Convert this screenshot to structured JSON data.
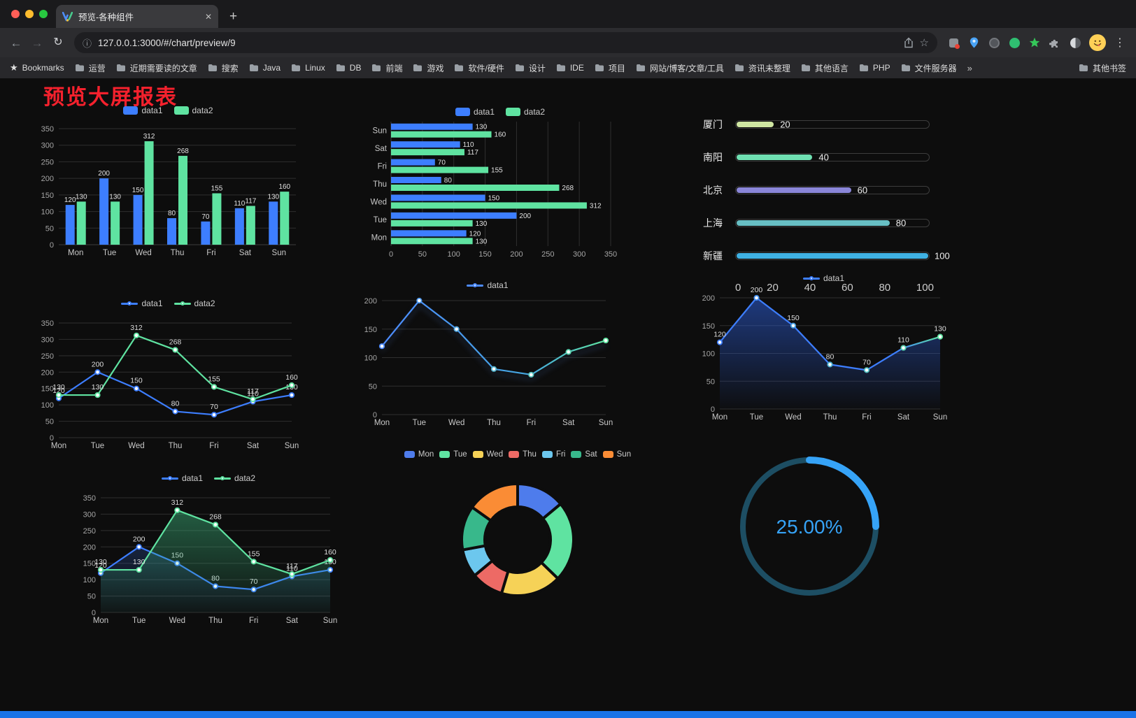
{
  "browser": {
    "tab_title": "预览-各种组件",
    "url": "127.0.0.1:3000/#/chart/preview/9",
    "traffic_lights": [
      "#ff5f57",
      "#febc2e",
      "#28c840"
    ],
    "icons": {
      "back": "←",
      "forward": "→",
      "reload": "↻",
      "info": "ⓘ",
      "star": "☆",
      "menu": "⋮",
      "new_tab": "+",
      "close_tab": "✕",
      "overflow": "»",
      "bookmarks_star": "★"
    },
    "bookmarks_label": "Bookmarks",
    "bookmarks": [
      "运营",
      "近期需要读的文章",
      "搜索",
      "Java",
      "Linux",
      "DB",
      "前端",
      "游戏",
      "软件/硬件",
      "设计",
      "IDE",
      "项目",
      "网站/博客/文章/工具",
      "资讯未整理",
      "其他语言",
      "PHP",
      "文件服务器"
    ],
    "other_bookmarks": "其他书签"
  },
  "page": {
    "title": "预览大屏报表",
    "title_color": "#f5212d",
    "background": "#0d0d0d",
    "footer_color": "#1a73e8"
  },
  "chart_data": [
    {
      "id": "bar-grouped",
      "type": "bar",
      "categories": [
        "Mon",
        "Tue",
        "Wed",
        "Thu",
        "Fri",
        "Sat",
        "Sun"
      ],
      "series": [
        {
          "name": "data1",
          "color": "#3D7EFF",
          "values": [
            120,
            200,
            150,
            80,
            70,
            110,
            130
          ]
        },
        {
          "name": "data2",
          "color": "#5FE3A1",
          "values": [
            130,
            130,
            312,
            268,
            155,
            117,
            160
          ]
        }
      ],
      "ylim": [
        0,
        350
      ],
      "ytick": 50,
      "show_labels": true
    },
    {
      "id": "bar-horizontal",
      "type": "hbar",
      "categories": [
        "Mon",
        "Tue",
        "Wed",
        "Thu",
        "Fri",
        "Sat",
        "Sun"
      ],
      "series": [
        {
          "name": "data1",
          "color": "#3D7EFF",
          "values": [
            120,
            200,
            150,
            80,
            70,
            110,
            130
          ]
        },
        {
          "name": "data2",
          "color": "#5FE3A1",
          "values": [
            130,
            130,
            312,
            268,
            155,
            117,
            160
          ]
        }
      ],
      "xlim": [
        0,
        350
      ],
      "xtick": 50,
      "show_labels": true
    },
    {
      "id": "progress",
      "type": "progress",
      "max": 100,
      "items": [
        {
          "label": "厦门",
          "value": 20,
          "color": "#cfe6a2"
        },
        {
          "label": "南阳",
          "value": 40,
          "color": "#6fe0b2"
        },
        {
          "label": "北京",
          "value": 60,
          "color": "#8a86d8"
        },
        {
          "label": "上海",
          "value": 80,
          "color": "#67bfc4"
        },
        {
          "label": "新疆",
          "value": 100,
          "color": "#3fb1e3"
        }
      ],
      "axis_ticks": [
        0,
        20,
        40,
        60,
        80,
        100
      ]
    },
    {
      "id": "line-two",
      "type": "line",
      "categories": [
        "Mon",
        "Tue",
        "Wed",
        "Thu",
        "Fri",
        "Sat",
        "Sun"
      ],
      "series": [
        {
          "name": "data1",
          "color": "#3D7EFF",
          "values": [
            120,
            200,
            150,
            80,
            70,
            110,
            130
          ]
        },
        {
          "name": "data2",
          "color": "#5FE3A1",
          "values": [
            130,
            130,
            312,
            268,
            155,
            117,
            160
          ]
        }
      ],
      "ylim": [
        0,
        350
      ],
      "ytick": 50,
      "show_labels": true
    },
    {
      "id": "line-gradient",
      "type": "line",
      "categories": [
        "Mon",
        "Tue",
        "Wed",
        "Thu",
        "Fri",
        "Sat",
        "Sun"
      ],
      "series": [
        {
          "name": "data1",
          "color": "#4d8bff",
          "shadow": true,
          "gradient": [
            [
              "0%",
              "#4d8bff"
            ],
            [
              "65%",
              "#45a7e0"
            ],
            [
              "100%",
              "#5FE3A1"
            ]
          ],
          "values": [
            120,
            200,
            150,
            80,
            70,
            110,
            130
          ]
        }
      ],
      "ylim": [
        0,
        200
      ],
      "ytick": 50,
      "show_labels": false
    },
    {
      "id": "line-area",
      "type": "line",
      "categories": [
        "Mon",
        "Tue",
        "Wed",
        "Thu",
        "Fri",
        "Sat",
        "Sun"
      ],
      "series": [
        {
          "name": "data1",
          "color": "#3D7EFF",
          "gradient": [
            [
              "0%",
              "#3D7EFF"
            ],
            [
              "80%",
              "#3D7EFF"
            ],
            [
              "100%",
              "#5FE3A1"
            ]
          ],
          "area": [
            "rgba(45,95,220,0.55)",
            "rgba(45,95,220,0.02)"
          ],
          "values": [
            120,
            200,
            150,
            80,
            70,
            110,
            130
          ]
        }
      ],
      "ylim": [
        0,
        200
      ],
      "ytick": 50,
      "show_labels": true
    },
    {
      "id": "line-area-two",
      "type": "line",
      "categories": [
        "Mon",
        "Tue",
        "Wed",
        "Thu",
        "Fri",
        "Sat",
        "Sun"
      ],
      "series": [
        {
          "name": "data1",
          "color": "#3D7EFF",
          "area": [
            "rgba(61,126,255,0.20)",
            "rgba(61,126,255,0.02)"
          ],
          "values": [
            120,
            200,
            150,
            80,
            70,
            110,
            130
          ]
        },
        {
          "name": "data2",
          "color": "#5FE3A1",
          "area": [
            "rgba(63,190,131,0.45)",
            "rgba(63,190,131,0.04)"
          ],
          "values": [
            130,
            130,
            312,
            268,
            155,
            117,
            160
          ]
        }
      ],
      "ylim": [
        0,
        350
      ],
      "ytick": 50,
      "show_labels": true
    },
    {
      "id": "donut",
      "type": "donut",
      "categories": [
        "Mon",
        "Tue",
        "Wed",
        "Thu",
        "Fri",
        "Sat",
        "Sun"
      ],
      "values": [
        120,
        200,
        150,
        80,
        70,
        110,
        130
      ],
      "colors": [
        "#4E7CEC",
        "#5FE3A1",
        "#F6D257",
        "#ED6A65",
        "#6CC7EE",
        "#38B88B",
        "#FA8C35"
      ]
    },
    {
      "id": "gauge",
      "type": "gauge",
      "value": 25,
      "label": "25.00%",
      "color": "#36A3F7",
      "track_color": "#1D4E63"
    }
  ]
}
